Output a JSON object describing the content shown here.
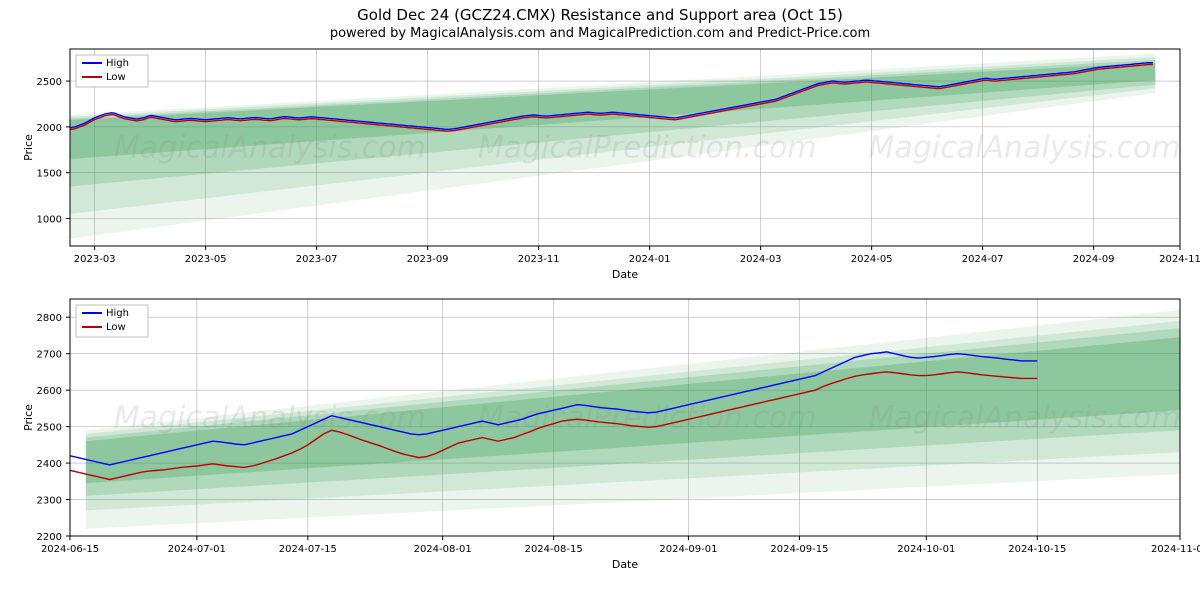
{
  "title": "Gold Dec 24 (GCZ24.CMX) Resistance and Support area (Oct 15)",
  "subtitle": "powered by MagicalAnalysis.com and MagicalPrediction.com and Predict-Price.com",
  "watermark_texts": [
    "MagicalAnalysis.com",
    "MagicalPrediction.com"
  ],
  "background_color": "#ffffff",
  "grid_color": "#b0b0b0",
  "axis_color": "#000000",
  "tick_label_fontsize": 10,
  "axis_label_fontsize": 11,
  "series_colors": {
    "high": "#0000ff",
    "low": "#c00000"
  },
  "band_colors": [
    "rgba(60,160,90,0.10)",
    "rgba(60,160,90,0.15)",
    "rgba(60,160,90,0.22)",
    "rgba(60,160,90,0.30)"
  ],
  "legend": {
    "border_color": "#bfbfbf",
    "bg_color": "#ffffff",
    "font_size": 10,
    "items": [
      {
        "label": "High",
        "color": "#0000ff"
      },
      {
        "label": "Low",
        "color": "#c00000"
      }
    ]
  },
  "chart_top": {
    "type": "line",
    "xlabel": "Date",
    "ylabel": "Price",
    "xlim_index": [
      0,
      450
    ],
    "ylim": [
      700,
      2850
    ],
    "ytick_step": 500,
    "yticks": [
      1000,
      1500,
      2000,
      2500
    ],
    "xticks": [
      {
        "i": 10,
        "label": "2023-03"
      },
      {
        "i": 55,
        "label": "2023-05"
      },
      {
        "i": 100,
        "label": "2023-07"
      },
      {
        "i": 145,
        "label": "2023-09"
      },
      {
        "i": 190,
        "label": "2023-11"
      },
      {
        "i": 235,
        "label": "2024-01"
      },
      {
        "i": 280,
        "label": "2024-03"
      },
      {
        "i": 325,
        "label": "2024-05"
      },
      {
        "i": 370,
        "label": "2024-07"
      },
      {
        "i": 415,
        "label": "2024-09"
      },
      {
        "i": 450,
        "label": "2024-11"
      }
    ],
    "bands": [
      {
        "x": [
          0,
          440
        ],
        "y_top": [
          2130,
          2800
        ],
        "y_bot": [
          780,
          2370
        ],
        "opacity": 0.1
      },
      {
        "x": [
          0,
          440
        ],
        "y_top": [
          2110,
          2760
        ],
        "y_bot": [
          1050,
          2420
        ],
        "opacity": 0.15
      },
      {
        "x": [
          0,
          440
        ],
        "y_top": [
          2090,
          2730
        ],
        "y_bot": [
          1350,
          2460
        ],
        "opacity": 0.22
      },
      {
        "x": [
          0,
          440
        ],
        "y_top": [
          2075,
          2700
        ],
        "y_bot": [
          1650,
          2510
        ],
        "opacity": 0.3
      }
    ],
    "high": [
      1990,
      1995,
      2000,
      2010,
      2020,
      2030,
      2040,
      2055,
      2070,
      2085,
      2100,
      2110,
      2120,
      2130,
      2140,
      2145,
      2150,
      2155,
      2150,
      2140,
      2130,
      2120,
      2110,
      2105,
      2100,
      2095,
      2090,
      2085,
      2090,
      2095,
      2100,
      2110,
      2120,
      2125,
      2120,
      2115,
      2110,
      2105,
      2100,
      2095,
      2090,
      2085,
      2080,
      2078,
      2080,
      2082,
      2085,
      2088,
      2090,
      2092,
      2090,
      2088,
      2085,
      2082,
      2080,
      2078,
      2080,
      2082,
      2085,
      2088,
      2090,
      2092,
      2095,
      2098,
      2100,
      2098,
      2095,
      2092,
      2090,
      2088,
      2090,
      2092,
      2095,
      2098,
      2100,
      2102,
      2100,
      2098,
      2095,
      2092,
      2090,
      2088,
      2090,
      2095,
      2100,
      2105,
      2110,
      2112,
      2110,
      2108,
      2105,
      2102,
      2100,
      2098,
      2100,
      2102,
      2105,
      2108,
      2110,
      2108,
      2105,
      2102,
      2100,
      2098,
      2095,
      2092,
      2090,
      2088,
      2085,
      2082,
      2080,
      2078,
      2075,
      2072,
      2070,
      2068,
      2065,
      2062,
      2060,
      2058,
      2055,
      2052,
      2050,
      2048,
      2045,
      2042,
      2040,
      2038,
      2035,
      2032,
      2030,
      2028,
      2025,
      2022,
      2020,
      2018,
      2015,
      2012,
      2010,
      2008,
      2005,
      2002,
      2000,
      1998,
      1995,
      1992,
      1990,
      1988,
      1985,
      1983,
      1980,
      1978,
      1975,
      1973,
      1975,
      1978,
      1980,
      1985,
      1990,
      1995,
      2000,
      2005,
      2010,
      2015,
      2020,
      2025,
      2030,
      2035,
      2040,
      2045,
      2050,
      2055,
      2060,
      2065,
      2070,
      2075,
      2080,
      2085,
      2090,
      2095,
      2100,
      2105,
      2110,
      2115,
      2120,
      2122,
      2125,
      2128,
      2130,
      2128,
      2125,
      2122,
      2120,
      2118,
      2120,
      2122,
      2125,
      2128,
      2130,
      2132,
      2135,
      2138,
      2140,
      2142,
      2145,
      2148,
      2150,
      2152,
      2155,
      2158,
      2160,
      2158,
      2155,
      2152,
      2150,
      2148,
      2150,
      2152,
      2155,
      2158,
      2160,
      2158,
      2155,
      2152,
      2150,
      2148,
      2145,
      2142,
      2140,
      2138,
      2135,
      2132,
      2130,
      2128,
      2125,
      2122,
      2120,
      2118,
      2115,
      2112,
      2110,
      2108,
      2105,
      2102,
      2100,
      2098,
      2100,
      2105,
      2110,
      2115,
      2120,
      2125,
      2130,
      2135,
      2140,
      2145,
      2150,
      2155,
      2160,
      2165,
      2170,
      2175,
      2180,
      2185,
      2190,
      2195,
      2200,
      2205,
      2210,
      2215,
      2220,
      2225,
      2230,
      2235,
      2240,
      2245,
      2250,
      2255,
      2260,
      2265,
      2270,
      2275,
      2280,
      2285,
      2290,
      2295,
      2300,
      2310,
      2320,
      2330,
      2340,
      2350,
      2360,
      2370,
      2380,
      2390,
      2400,
      2410,
      2420,
      2430,
      2440,
      2450,
      2460,
      2470,
      2475,
      2480,
      2485,
      2490,
      2495,
      2500,
      2498,
      2495,
      2492,
      2490,
      2488,
      2490,
      2492,
      2495,
      2498,
      2500,
      2502,
      2505,
      2508,
      2510,
      2508,
      2505,
      2502,
      2500,
      2498,
      2495,
      2492,
      2490,
      2488,
      2485,
      2482,
      2480,
      2478,
      2475,
      2472,
      2470,
      2468,
      2465,
      2462,
      2460,
      2458,
      2455,
      2452,
      2450,
      2448,
      2445,
      2442,
      2440,
      2438,
      2440,
      2445,
      2450,
      2455,
      2460,
      2465,
      2470,
      2475,
      2480,
      2485,
      2490,
      2495,
      2500,
      2505,
      2510,
      2515,
      2520,
      2525,
      2530,
      2528,
      2525,
      2522,
      2520,
      2522,
      2525,
      2528,
      2530,
      2532,
      2535,
      2538,
      2540,
      2542,
      2545,
      2548,
      2550,
      2552,
      2555,
      2558,
      2560,
      2562,
      2565,
      2568,
      2570,
      2572,
      2575,
      2578,
      2580,
      2582,
      2585,
      2588,
      2590,
      2592,
      2595,
      2598,
      2600,
      2605,
      2610,
      2615,
      2620,
      2625,
      2630,
      2635,
      2640,
      2645,
      2650,
      2652,
      2655,
      2658,
      2660,
      2662,
      2665,
      2668,
      2670,
      2672,
      2675,
      2678,
      2680,
      2682,
      2685,
      2688,
      2690,
      2692,
      2695,
      2698,
      2700,
      2700,
      2700
    ],
    "low": [
      1970,
      1975,
      1980,
      1990,
      2000,
      2010,
      2020,
      2035,
      2050,
      2065,
      2080,
      2090,
      2100,
      2110,
      2120,
      2125,
      2130,
      2135,
      2130,
      2120,
      2110,
      2100,
      2090,
      2085,
      2080,
      2075,
      2070,
      2065,
      2070,
      2075,
      2080,
      2090,
      2100,
      2105,
      2100,
      2095,
      2090,
      2085,
      2080,
      2075,
      2070,
      2065,
      2060,
      2058,
      2060,
      2062,
      2065,
      2068,
      2070,
      2072,
      2070,
      2068,
      2065,
      2062,
      2060,
      2058,
      2060,
      2062,
      2065,
      2068,
      2070,
      2072,
      2075,
      2078,
      2080,
      2078,
      2075,
      2072,
      2070,
      2068,
      2070,
      2072,
      2075,
      2078,
      2080,
      2082,
      2080,
      2078,
      2075,
      2072,
      2070,
      2068,
      2070,
      2075,
      2080,
      2085,
      2090,
      2092,
      2090,
      2088,
      2085,
      2082,
      2080,
      2078,
      2080,
      2082,
      2085,
      2088,
      2090,
      2088,
      2085,
      2082,
      2080,
      2078,
      2075,
      2072,
      2070,
      2068,
      2065,
      2062,
      2060,
      2058,
      2055,
      2052,
      2050,
      2048,
      2045,
      2042,
      2040,
      2038,
      2035,
      2032,
      2030,
      2028,
      2025,
      2022,
      2020,
      2018,
      2015,
      2012,
      2010,
      2008,
      2005,
      2002,
      2000,
      1998,
      1995,
      1992,
      1990,
      1988,
      1985,
      1982,
      1980,
      1978,
      1975,
      1972,
      1970,
      1968,
      1965,
      1963,
      1960,
      1958,
      1955,
      1953,
      1955,
      1958,
      1960,
      1965,
      1970,
      1975,
      1980,
      1985,
      1990,
      1995,
      2000,
      2005,
      2010,
      2015,
      2020,
      2025,
      2030,
      2035,
      2040,
      2045,
      2050,
      2055,
      2060,
      2065,
      2070,
      2075,
      2080,
      2085,
      2090,
      2095,
      2100,
      2102,
      2105,
      2108,
      2110,
      2108,
      2105,
      2102,
      2100,
      2098,
      2100,
      2102,
      2105,
      2108,
      2110,
      2112,
      2115,
      2118,
      2120,
      2122,
      2125,
      2128,
      2130,
      2132,
      2135,
      2138,
      2140,
      2138,
      2135,
      2132,
      2130,
      2128,
      2130,
      2132,
      2135,
      2138,
      2140,
      2138,
      2135,
      2132,
      2130,
      2128,
      2125,
      2122,
      2120,
      2118,
      2115,
      2112,
      2110,
      2108,
      2105,
      2102,
      2100,
      2098,
      2095,
      2092,
      2090,
      2088,
      2085,
      2082,
      2080,
      2078,
      2080,
      2085,
      2090,
      2095,
      2100,
      2105,
      2110,
      2115,
      2120,
      2125,
      2130,
      2135,
      2140,
      2145,
      2150,
      2155,
      2160,
      2165,
      2170,
      2175,
      2180,
      2185,
      2190,
      2195,
      2200,
      2205,
      2210,
      2215,
      2220,
      2225,
      2230,
      2235,
      2240,
      2245,
      2250,
      2255,
      2260,
      2265,
      2270,
      2275,
      2280,
      2290,
      2300,
      2310,
      2320,
      2330,
      2340,
      2350,
      2360,
      2370,
      2380,
      2390,
      2400,
      2410,
      2420,
      2430,
      2440,
      2450,
      2455,
      2460,
      2465,
      2470,
      2475,
      2480,
      2478,
      2475,
      2472,
      2470,
      2468,
      2470,
      2472,
      2475,
      2478,
      2480,
      2482,
      2485,
      2488,
      2490,
      2488,
      2485,
      2482,
      2480,
      2478,
      2475,
      2472,
      2470,
      2468,
      2465,
      2462,
      2460,
      2458,
      2455,
      2452,
      2450,
      2448,
      2445,
      2442,
      2440,
      2438,
      2435,
      2432,
      2430,
      2428,
      2425,
      2422,
      2420,
      2418,
      2420,
      2425,
      2430,
      2435,
      2440,
      2445,
      2450,
      2455,
      2460,
      2465,
      2470,
      2475,
      2480,
      2485,
      2490,
      2495,
      2500,
      2505,
      2510,
      2508,
      2505,
      2502,
      2500,
      2502,
      2505,
      2508,
      2510,
      2512,
      2515,
      2518,
      2520,
      2522,
      2525,
      2528,
      2530,
      2532,
      2535,
      2538,
      2540,
      2542,
      2545,
      2548,
      2550,
      2552,
      2555,
      2558,
      2560,
      2562,
      2565,
      2568,
      2570,
      2572,
      2575,
      2578,
      2580,
      2585,
      2590,
      2595,
      2600,
      2605,
      2610,
      2615,
      2620,
      2625,
      2630,
      2632,
      2635,
      2638,
      2640,
      2642,
      2645,
      2648,
      2650,
      2652,
      2655,
      2658,
      2660,
      2662,
      2665,
      2668,
      2670,
      2672,
      2675,
      2678,
      2680,
      2680,
      2680
    ]
  },
  "chart_bottom": {
    "type": "line",
    "xlabel": "Date",
    "ylabel": "Price",
    "xlim_index": [
      0,
      140
    ],
    "ylim": [
      2200,
      2850
    ],
    "ytick_step": 100,
    "yticks": [
      2200,
      2300,
      2400,
      2500,
      2600,
      2700,
      2800
    ],
    "xticks": [
      {
        "i": 0,
        "label": "2024-06-15"
      },
      {
        "i": 16,
        "label": "2024-07-01"
      },
      {
        "i": 30,
        "label": "2024-07-15"
      },
      {
        "i": 47,
        "label": "2024-08-01"
      },
      {
        "i": 61,
        "label": "2024-08-15"
      },
      {
        "i": 78,
        "label": "2024-09-01"
      },
      {
        "i": 92,
        "label": "2024-09-15"
      },
      {
        "i": 108,
        "label": "2024-10-01"
      },
      {
        "i": 122,
        "label": "2024-10-15"
      },
      {
        "i": 140,
        "label": "2024-11-01"
      }
    ],
    "bands": [
      {
        "x": [
          2,
          140
        ],
        "y_top": [
          2490,
          2820
        ],
        "y_bot": [
          2220,
          2370
        ],
        "opacity": 0.1
      },
      {
        "x": [
          2,
          140
        ],
        "y_top": [
          2480,
          2790
        ],
        "y_bot": [
          2270,
          2430
        ],
        "opacity": 0.15
      },
      {
        "x": [
          2,
          140
        ],
        "y_top": [
          2470,
          2770
        ],
        "y_bot": [
          2310,
          2490
        ],
        "opacity": 0.22
      },
      {
        "x": [
          2,
          140
        ],
        "y_top": [
          2460,
          2745
        ],
        "y_bot": [
          2345,
          2545
        ],
        "opacity": 0.3
      }
    ],
    "high": [
      2420,
      2415,
      2410,
      2405,
      2400,
      2395,
      2400,
      2405,
      2410,
      2415,
      2420,
      2425,
      2430,
      2435,
      2440,
      2445,
      2450,
      2455,
      2460,
      2458,
      2455,
      2452,
      2450,
      2455,
      2460,
      2465,
      2470,
      2475,
      2480,
      2490,
      2500,
      2510,
      2520,
      2530,
      2525,
      2520,
      2515,
      2510,
      2505,
      2500,
      2495,
      2490,
      2485,
      2480,
      2478,
      2480,
      2485,
      2490,
      2495,
      2500,
      2505,
      2510,
      2515,
      2510,
      2505,
      2510,
      2515,
      2520,
      2528,
      2535,
      2540,
      2545,
      2550,
      2555,
      2560,
      2558,
      2555,
      2552,
      2550,
      2548,
      2545,
      2542,
      2540,
      2538,
      2540,
      2545,
      2550,
      2555,
      2560,
      2565,
      2570,
      2575,
      2580,
      2585,
      2590,
      2595,
      2600,
      2605,
      2610,
      2615,
      2620,
      2625,
      2630,
      2635,
      2640,
      2650,
      2660,
      2670,
      2680,
      2690,
      2695,
      2700,
      2702,
      2705,
      2700,
      2695,
      2690,
      2688,
      2690,
      2692,
      2695,
      2698,
      2700,
      2698,
      2695,
      2692,
      2690,
      2688,
      2685,
      2683,
      2680,
      2680,
      2680
    ],
    "low": [
      2380,
      2375,
      2370,
      2365,
      2360,
      2355,
      2360,
      2365,
      2370,
      2375,
      2378,
      2380,
      2382,
      2385,
      2388,
      2390,
      2392,
      2395,
      2398,
      2395,
      2392,
      2390,
      2388,
      2392,
      2398,
      2405,
      2412,
      2420,
      2428,
      2438,
      2450,
      2465,
      2480,
      2490,
      2485,
      2478,
      2470,
      2462,
      2455,
      2448,
      2440,
      2432,
      2425,
      2420,
      2415,
      2418,
      2425,
      2435,
      2445,
      2455,
      2460,
      2465,
      2470,
      2465,
      2460,
      2465,
      2470,
      2478,
      2486,
      2495,
      2502,
      2508,
      2515,
      2518,
      2520,
      2518,
      2515,
      2512,
      2510,
      2508,
      2505,
      2502,
      2500,
      2498,
      2500,
      2505,
      2510,
      2515,
      2520,
      2525,
      2530,
      2535,
      2540,
      2545,
      2550,
      2555,
      2560,
      2565,
      2570,
      2575,
      2580,
      2585,
      2590,
      2595,
      2600,
      2610,
      2618,
      2625,
      2632,
      2638,
      2642,
      2645,
      2648,
      2650,
      2648,
      2645,
      2642,
      2640,
      2640,
      2642,
      2645,
      2648,
      2650,
      2648,
      2645,
      2642,
      2640,
      2638,
      2636,
      2634,
      2632,
      2632,
      2632
    ]
  }
}
